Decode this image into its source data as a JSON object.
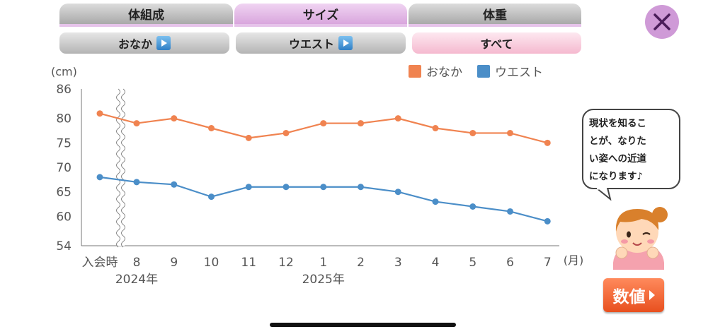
{
  "tabs": [
    {
      "label": "体組成",
      "active": false
    },
    {
      "label": "サイズ",
      "active": true
    },
    {
      "label": "体重",
      "active": false
    }
  ],
  "subtabs": [
    {
      "label": "おなか",
      "active": false
    },
    {
      "label": "ウエスト",
      "active": false
    },
    {
      "label": "すべて",
      "active": true
    }
  ],
  "close_icon": "close-x-icon",
  "speech_bubble": [
    "現状を知るこ",
    "とが、なりた",
    "い姿への近道",
    "になります♪"
  ],
  "value_button_label": "数値",
  "chart_data": {
    "type": "line",
    "y_unit_label": "(cm)",
    "x_unit_label": "(月)",
    "categories": [
      "入会時",
      "8",
      "9",
      "10",
      "11",
      "12",
      "1",
      "2",
      "3",
      "4",
      "5",
      "6",
      "7"
    ],
    "year_labels": [
      {
        "label": "2024年",
        "at": "8"
      },
      {
        "label": "2025年",
        "at": "1"
      }
    ],
    "y_ticks": [
      54,
      60,
      65,
      70,
      75,
      80,
      86
    ],
    "ylim": [
      54,
      86
    ],
    "axis_break_after": "入会時",
    "legend_position": "top-right",
    "series": [
      {
        "name": "おなか",
        "color": "#f08350",
        "values": [
          81,
          79,
          80,
          78,
          76,
          77,
          79,
          79,
          80,
          78,
          77,
          77,
          75
        ]
      },
      {
        "name": "ウエスト",
        "color": "#4b8ec8",
        "values": [
          68,
          67,
          66.5,
          64,
          66,
          66,
          66,
          66,
          65,
          63,
          62,
          61,
          59
        ]
      }
    ]
  }
}
